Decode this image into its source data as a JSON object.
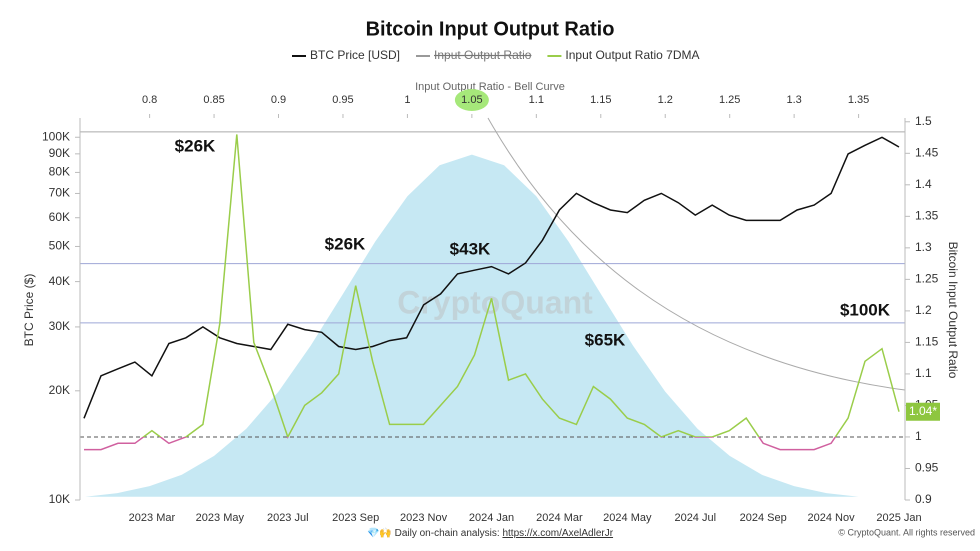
{
  "chart_data": {
    "type": "line",
    "title": "Bitcoin Input Output Ratio",
    "top_axis_title": "Input Output Ratio - Bell Curve",
    "ylabel": "BTC Price ($)",
    "y2label": "Bitcoin Input Output Ratio",
    "watermark": "CryptoQuant",
    "last_value_label": "1.04*",
    "footer": {
      "prefix": "💎🙌 Daily on-chain analysis: ",
      "link": "https://x.com/AxelAdlerJr",
      "copyright": "© CryptoQuant. All rights reserved"
    },
    "annotations": [
      "$26K",
      "$26K",
      "$43K",
      "$65K",
      "$100K"
    ],
    "x": [
      null,
      null,
      null,
      null,
      "2023 Mar",
      null,
      null,
      null,
      "2023 May",
      null,
      null,
      null,
      "2023 Jul",
      null,
      null,
      null,
      "2023 Sep",
      null,
      null,
      null,
      "2023 Nov",
      null,
      null,
      null,
      "2024 Jan",
      null,
      null,
      null,
      "2024 Mar",
      null,
      null,
      null,
      "2024 May",
      null,
      null,
      null,
      "2024 Jul",
      null,
      null,
      null,
      "2024 Sep",
      null,
      null,
      null,
      "2024 Nov",
      null,
      null,
      null,
      "2025 Jan"
    ],
    "ylog": true,
    "ylim": [
      10000,
      113000
    ],
    "yticks": [
      {
        "value": 10000,
        "label": "10K"
      },
      {
        "value": 20000,
        "label": "20K"
      },
      {
        "value": 30000,
        "label": "30K"
      },
      {
        "value": 40000,
        "label": "40K"
      },
      {
        "value": 50000,
        "label": "50K"
      },
      {
        "value": 60000,
        "label": "60K"
      },
      {
        "value": 70000,
        "label": "70K"
      },
      {
        "value": 80000,
        "label": "80K"
      },
      {
        "value": 90000,
        "label": "90K"
      },
      {
        "value": 100000,
        "label": "100K"
      }
    ],
    "y2lim": [
      0.9,
      1.506
    ],
    "y2ticks": [
      0.9,
      0.95,
      1,
      1.05,
      1.1,
      1.15,
      1.2,
      1.25,
      1.3,
      1.35,
      1.4,
      1.45,
      1.5
    ],
    "top_xlim": [
      0.746,
      1.386
    ],
    "top_xticks": [
      0.8,
      0.85,
      0.9,
      0.95,
      1,
      1.05,
      1.1,
      1.15,
      1.2,
      1.25,
      1.3,
      1.35
    ],
    "top_highlight": 1.05,
    "reference_lines": [
      1.484,
      1.275,
      1.181
    ],
    "dashed_line": 1,
    "below_color": "#d0609f",
    "series": [
      {
        "name": "BTC Price [USD]",
        "color": "#111111",
        "values": [
          16800,
          22000,
          23000,
          24000,
          22000,
          27000,
          28000,
          30000,
          28000,
          27000,
          26500,
          26000,
          30500,
          29500,
          29000,
          26500,
          26000,
          26500,
          27500,
          28000,
          34500,
          37000,
          42000,
          43000,
          44000,
          42000,
          45000,
          52000,
          63000,
          70000,
          66000,
          63000,
          62000,
          67000,
          70000,
          66000,
          61000,
          65000,
          61000,
          59000,
          59000,
          59000,
          63000,
          65000,
          70000,
          90000,
          95000,
          100000,
          94000
        ]
      },
      {
        "name": "Input Output Ratio",
        "color": "#999999",
        "hidden": true
      },
      {
        "name": "Input Output Ratio 7DMA",
        "color": "#9acd4a",
        "axis": "y2",
        "values": [
          0.98,
          0.98,
          0.99,
          0.99,
          1.01,
          0.99,
          1.0,
          1.02,
          1.18,
          1.48,
          1.15,
          1.08,
          1.0,
          1.05,
          1.07,
          1.1,
          1.24,
          1.12,
          1.02,
          1.02,
          1.02,
          1.05,
          1.08,
          1.13,
          1.22,
          1.09,
          1.1,
          1.06,
          1.03,
          1.02,
          1.08,
          1.06,
          1.03,
          1.02,
          1.0,
          1.01,
          1.0,
          1.0,
          1.01,
          1.03,
          0.99,
          0.98,
          0.98,
          0.98,
          0.99,
          1.03,
          1.12,
          1.14,
          1.04
        ]
      }
    ],
    "bell_curve": {
      "color": "#c6e8f3",
      "x": [
        0.75,
        0.775,
        0.8,
        0.825,
        0.85,
        0.875,
        0.9,
        0.925,
        0.95,
        0.975,
        1.0,
        1.025,
        1.05,
        1.075,
        1.1,
        1.125,
        1.15,
        1.175,
        1.2,
        1.225,
        1.25,
        1.275,
        1.3,
        1.325,
        1.35
      ],
      "values": [
        0.905,
        0.911,
        0.922,
        0.94,
        0.97,
        1.013,
        1.072,
        1.145,
        1.227,
        1.31,
        1.382,
        1.431,
        1.448,
        1.431,
        1.382,
        1.31,
        1.227,
        1.145,
        1.072,
        1.013,
        0.97,
        0.94,
        0.922,
        0.911,
        0.905
      ]
    }
  }
}
